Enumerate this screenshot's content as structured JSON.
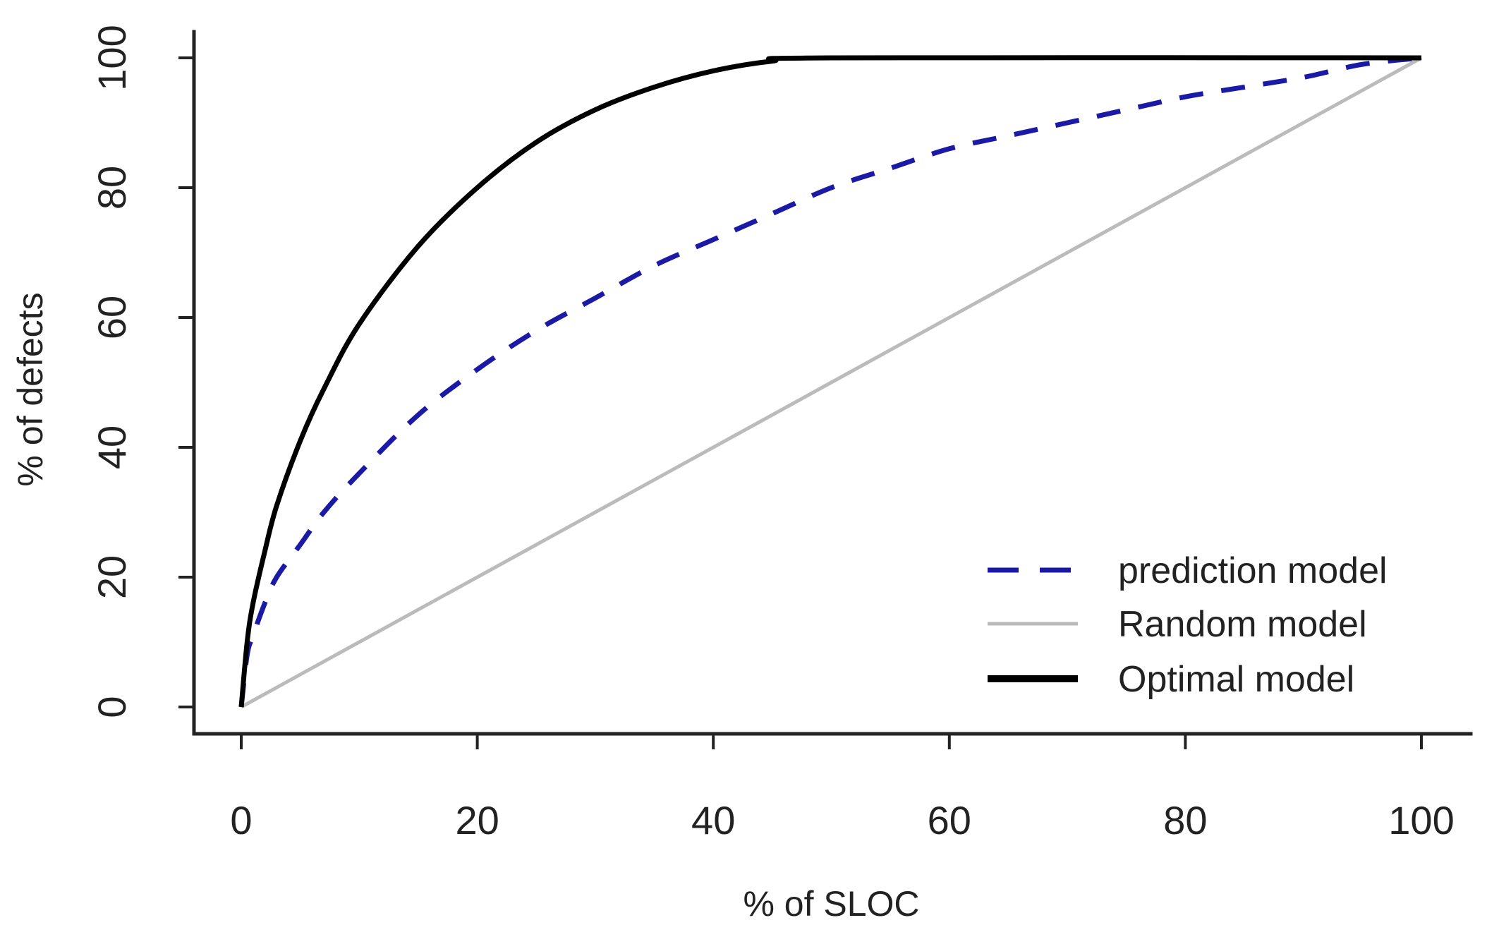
{
  "chart_data": {
    "type": "line",
    "title": "",
    "xlabel": "% of SLOC",
    "ylabel": "% of defects",
    "xlim": [
      0,
      100
    ],
    "ylim": [
      0,
      100
    ],
    "x_ticks": [
      "0",
      "20",
      "40",
      "60",
      "80",
      "100"
    ],
    "y_ticks": [
      "0",
      "20",
      "40",
      "60",
      "80",
      "100"
    ],
    "grid": false,
    "legend_position": "bottom-right",
    "series": [
      {
        "name": "prediction model",
        "color": "#1a1aa6",
        "style": "dashed",
        "x": [
          0,
          0.5,
          1,
          2,
          3,
          5,
          7,
          10,
          15,
          20,
          25,
          30,
          35,
          40,
          45,
          50,
          55,
          60,
          65,
          70,
          75,
          80,
          85,
          90,
          95,
          100
        ],
        "y": [
          0,
          8,
          11,
          16,
          20,
          25,
          30,
          36,
          45,
          52,
          58,
          63,
          68,
          72,
          76,
          80,
          83,
          86,
          88,
          90,
          92,
          94,
          95.5,
          97,
          99,
          100
        ]
      },
      {
        "name": "Random model",
        "color": "#bbbbbb",
        "style": "solid",
        "x": [
          0,
          100
        ],
        "y": [
          0,
          100
        ]
      },
      {
        "name": "Optimal model",
        "color": "#000000",
        "style": "solid",
        "x": [
          0,
          0.5,
          1,
          2,
          3,
          5,
          7,
          10,
          15,
          20,
          25,
          30,
          35,
          40,
          45,
          50,
          100
        ],
        "y": [
          0,
          10,
          16,
          24,
          31,
          41,
          49,
          59,
          71,
          80,
          87,
          92,
          95.5,
          98,
          99.5,
          100,
          100
        ]
      }
    ]
  }
}
